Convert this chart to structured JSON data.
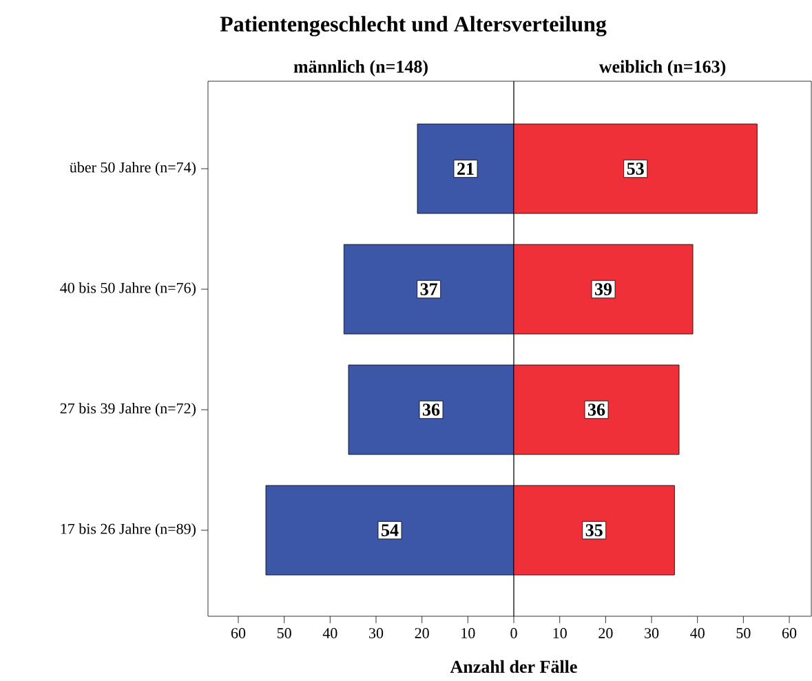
{
  "chart_data": [
    {
      "type": "bar",
      "orientation": "horizontal",
      "title": "Patientengeschlecht und Altersverteilung",
      "categories": [
        "über 50 Jahre (n=74)",
        "40 bis 50 Jahre (n=76)",
        "27 bis 39 Jahre (n=72)",
        "17 bis 26 Jahre (n=89)"
      ],
      "series": [
        {
          "name": "männlich (n=148)",
          "color": "#3c56a8",
          "values": [
            21,
            37,
            36,
            54
          ]
        }
      ],
      "data_labels": true,
      "xlim": [
        66.6,
        0
      ],
      "xticks": [
        60,
        50,
        40,
        30,
        20,
        10
      ]
    },
    {
      "type": "bar",
      "orientation": "horizontal",
      "xlabel": "Anzahl der Fälle",
      "categories": [
        null,
        null,
        null,
        null
      ],
      "series": [
        {
          "name": "weiblich (n=163)",
          "color": "#ef3038",
          "values": [
            53,
            39,
            36,
            35
          ]
        }
      ],
      "data_labels": true,
      "xlim": [
        0,
        64.8
      ],
      "xticks": [
        0,
        10,
        20,
        30,
        40,
        50,
        60
      ],
      "tick_labels": "x"
    }
  ]
}
